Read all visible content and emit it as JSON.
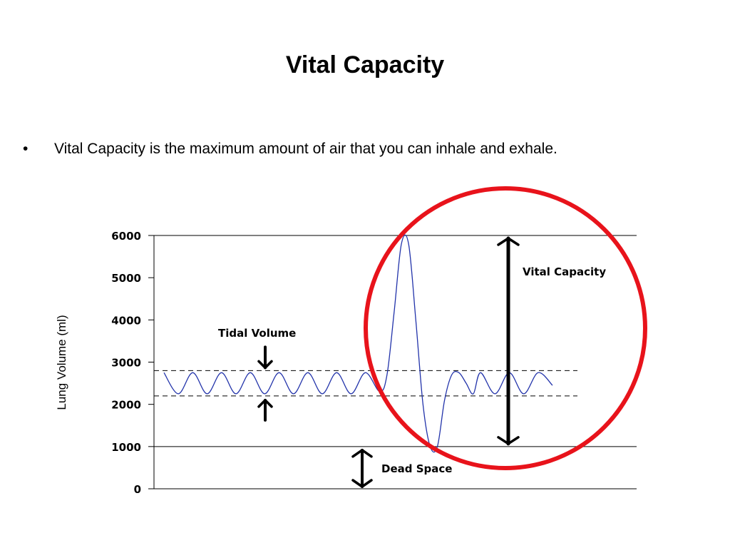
{
  "slide": {
    "title": "Vital Capacity",
    "bullet": "Vital Capacity is the maximum amount of air that you can inhale and exhale."
  },
  "chart_data": {
    "type": "line",
    "ylabel": "Lung Volume (ml)",
    "xlabel": "",
    "ylim": [
      0,
      6000
    ],
    "yticks": [
      0,
      1000,
      2000,
      3000,
      4000,
      5000,
      6000
    ],
    "reference_lines": [
      {
        "y": 6000,
        "style": "solid"
      },
      {
        "y": 1000,
        "style": "solid"
      },
      {
        "y": 2800,
        "style": "dashed"
      },
      {
        "y": 2200,
        "style": "dashed"
      }
    ],
    "series": [
      {
        "color": "#2233aa",
        "description": "breathing trace",
        "x": [
          0,
          20,
          40,
          60,
          80,
          100,
          120,
          140,
          160,
          180,
          200,
          220,
          240,
          260,
          280,
          300,
          310,
          320,
          330,
          340,
          350,
          360,
          370,
          380,
          390,
          400,
          410,
          420,
          430,
          440,
          460,
          480,
          500,
          520,
          540
        ],
        "y": [
          2750,
          2250,
          2750,
          2250,
          2750,
          2250,
          2750,
          2250,
          2750,
          2250,
          2750,
          2250,
          2750,
          2250,
          2750,
          2300,
          2700,
          4200,
          5800,
          5800,
          4000,
          2000,
          1000,
          1000,
          2100,
          2700,
          2750,
          2500,
          2250,
          2750,
          2250,
          2750,
          2250,
          2750,
          2450
        ]
      }
    ],
    "annotations": [
      {
        "text": "Tidal Volume",
        "from": 2200,
        "to": 2800
      },
      {
        "text": "Vital Capacity",
        "from": 1000,
        "to": 6000
      },
      {
        "text": "Dead Space",
        "from": 0,
        "to": 1000
      }
    ],
    "highlight": {
      "shape": "circle",
      "color": "#e8131b"
    }
  }
}
